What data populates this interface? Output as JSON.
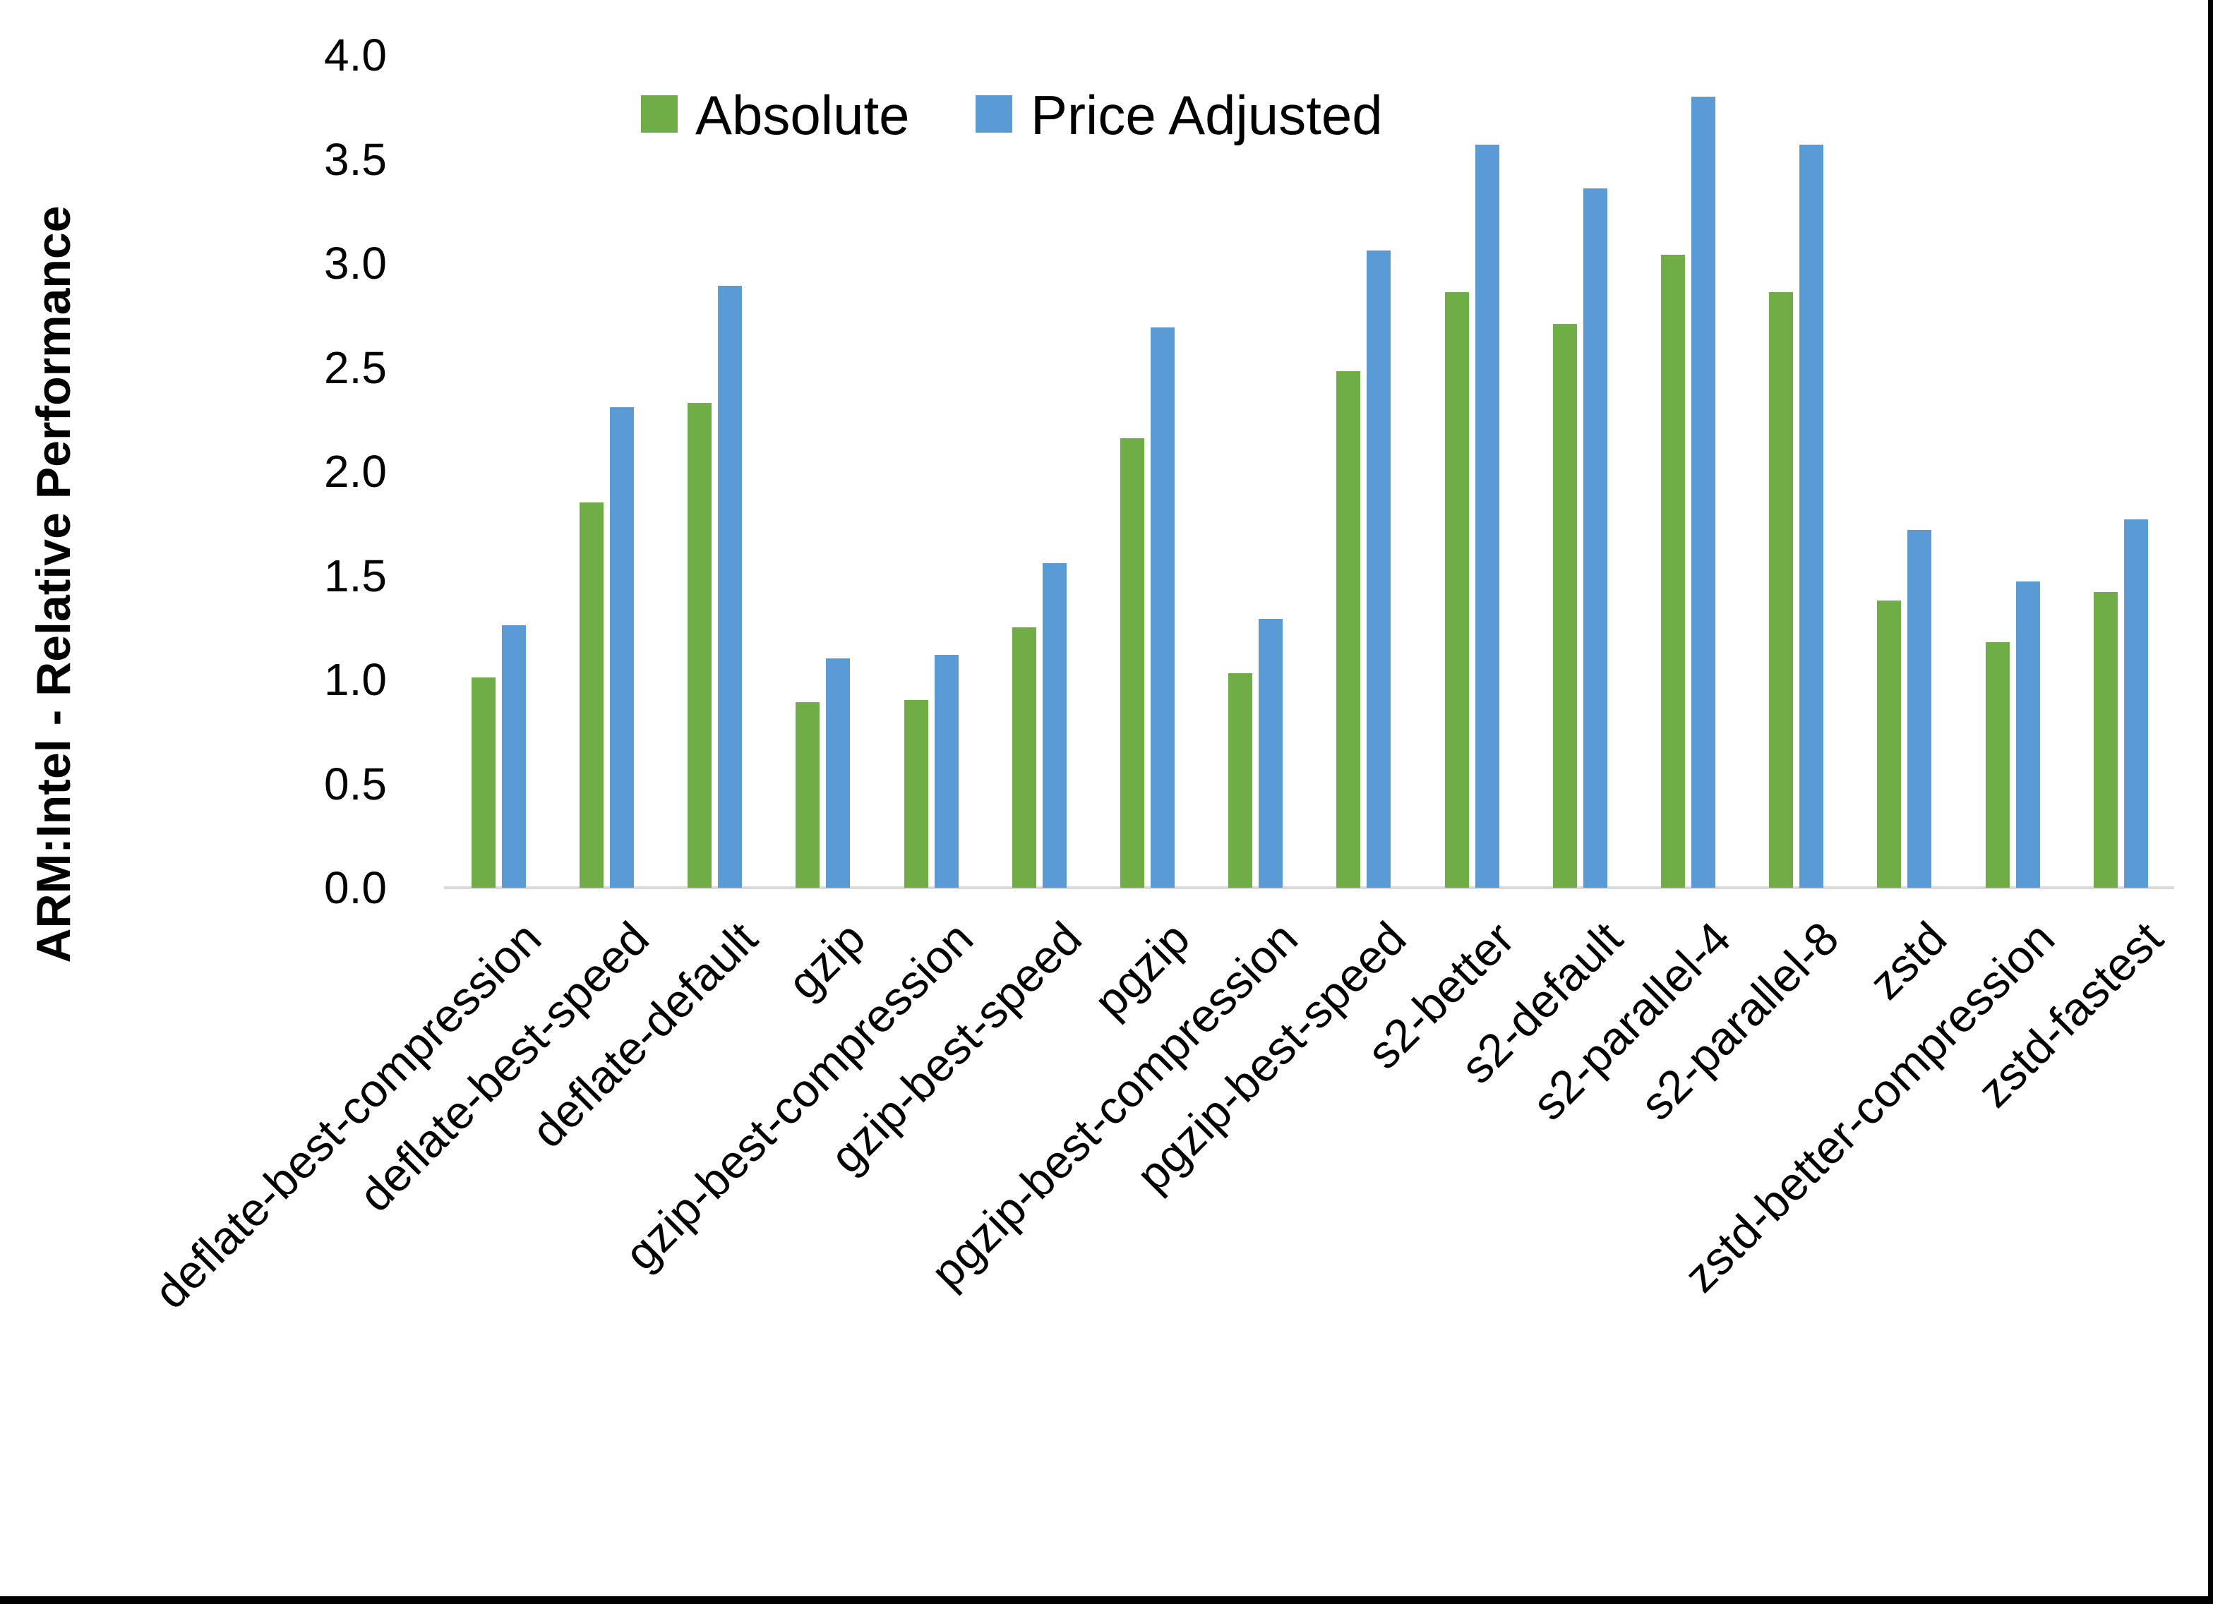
{
  "chart_data": {
    "type": "bar",
    "title": "",
    "xlabel": "",
    "ylabel": "ARM:Intel - Relative Performance",
    "ylim": [
      0.0,
      4.0
    ],
    "y_ticks": [
      "0.0",
      "0.5",
      "1.0",
      "1.5",
      "2.0",
      "2.5",
      "3.0",
      "3.5",
      "4.0"
    ],
    "grid": false,
    "legend_position": "top-center",
    "categories": [
      "deflate-best-compression",
      "deflate-best-speed",
      "deflate-default",
      "gzip",
      "gzip-best-compression",
      "gzip-best-speed",
      "pgzip",
      "pgzip-best-compression",
      "pgzip-best-speed",
      "s2-better",
      "s2-default",
      "s2-parallel-4",
      "s2-parallel-8",
      "zstd",
      "zstd-better-compression",
      "zstd-fastest"
    ],
    "series": [
      {
        "name": "Absolute",
        "color": "#70AD47",
        "values": [
          1.01,
          1.85,
          2.33,
          0.89,
          0.9,
          1.25,
          2.16,
          1.03,
          2.48,
          2.86,
          2.71,
          3.04,
          2.86,
          1.38,
          1.18,
          1.42
        ]
      },
      {
        "name": "Price Adjusted",
        "color": "#5B9BD5",
        "values": [
          1.26,
          2.31,
          2.89,
          1.1,
          1.12,
          1.56,
          2.69,
          1.29,
          3.06,
          3.57,
          3.36,
          3.8,
          3.57,
          1.72,
          1.47,
          1.77
        ]
      }
    ],
    "axis_line_color": "#D9D9D9",
    "text_color": "#000000"
  }
}
